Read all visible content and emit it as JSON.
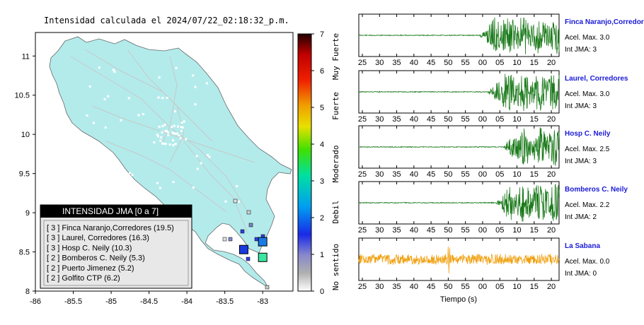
{
  "title": "Intensidad calculada el 2024/07/22_02:18:32_p.m.",
  "map": {
    "x_ticks": [
      "-86",
      "-85.5",
      "-85",
      "-84.5",
      "-84",
      "-83.5",
      "-83"
    ],
    "y_ticks": [
      "11",
      "10.5",
      "10",
      "9.5",
      "9",
      "8.5",
      "8"
    ],
    "x_range": [
      -86,
      -82.6
    ],
    "y_range": [
      8,
      11.3
    ],
    "land_color": "#b3ebeb",
    "stations": [
      {
        "lon": -83.25,
        "lat": 8.53,
        "color": "#1a3ae0"
      },
      {
        "lon": -83.0,
        "lat": 8.63,
        "color": "#1a7ae6"
      },
      {
        "lon": -83.0,
        "lat": 8.43,
        "color": "#3ae6a0"
      }
    ]
  },
  "legend": {
    "title": "INTENSIDAD JMA [0 a 7]",
    "rows": [
      "[ 3 ]  Finca Naranjo,Corredores (19.5)",
      "[ 3 ]  Laurel, Corredores (16.3)",
      "[ 3 ]  Hosp C. Neily (10.3)",
      "[ 2 ]  Bomberos C. Neily (5.3)",
      "[ 2 ]  Puerto Jimenez (5.2)",
      "[ 2 ]  Golfito CTP (6.2)"
    ]
  },
  "colorbar": {
    "ticks": [
      "7",
      "6",
      "5",
      "4",
      "3",
      "2",
      "1",
      "0"
    ],
    "labels": [
      "Muy Fuerte",
      "Fuerte",
      "Moderado",
      "Debil",
      "No sentido"
    ],
    "range": [
      0,
      7
    ]
  },
  "waveforms": {
    "x_tick_labels": [
      "25",
      "30",
      "35",
      "40",
      "45",
      "50",
      "55",
      "00",
      "05",
      "10",
      "15",
      "20"
    ],
    "xlabel": "Tiempo (s)",
    "panels": [
      {
        "name": "Finca Naranjo,Corredor",
        "acel": "Acel. Max. 3.0",
        "int": "Int JMA: 3",
        "color": "#1a7a1a",
        "onset": 0.6
      },
      {
        "name": "Laurel, Corredores",
        "acel": "Acel. Max. 3.0",
        "int": "Int JMA: 3",
        "color": "#1a7a1a",
        "onset": 0.64
      },
      {
        "name": "Hosp C. Neily",
        "acel": "Acel. Max. 2.5",
        "int": "Int JMA: 3",
        "color": "#1a7a1a",
        "onset": 0.72
      },
      {
        "name": "Bomberos C. Neily",
        "acel": "Acel. Max. 2.2",
        "int": "Int JMA: 2",
        "color": "#1a7a1a",
        "onset": 0.68
      },
      {
        "name": "La Sabana",
        "acel": "Acel. Max. 0.0",
        "int": "Int JMA: 0",
        "color": "#f0a010",
        "onset": 0.0
      }
    ]
  }
}
